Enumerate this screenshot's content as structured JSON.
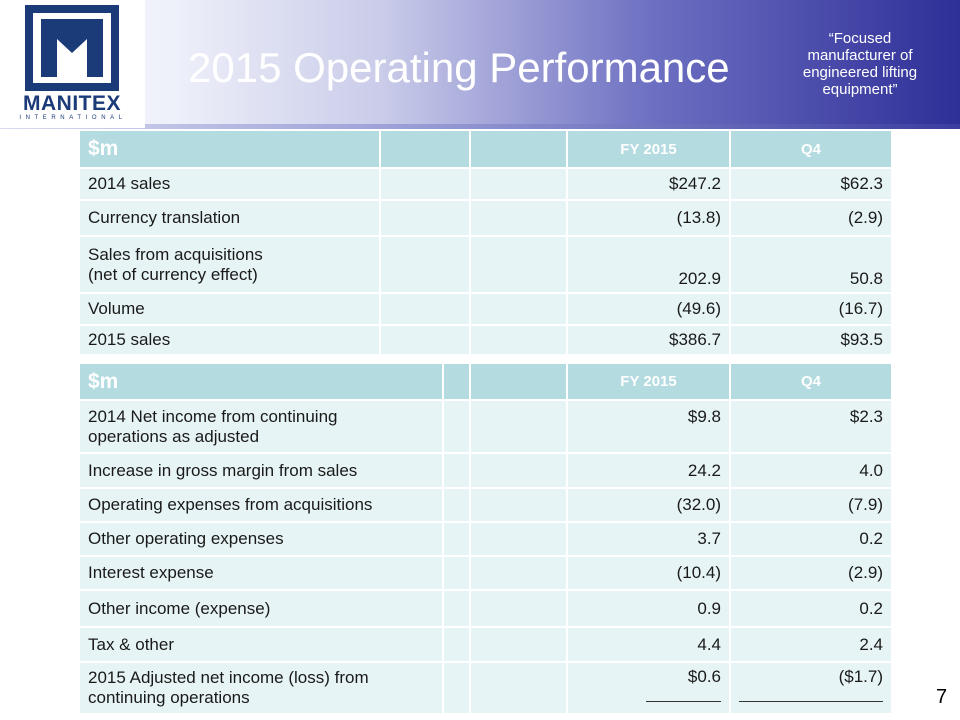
{
  "header": {
    "title": "2015 Operating Performance",
    "tagline": "“Focused manufacturer of engineered lifting equipment”",
    "logo_word": "MANITEX",
    "logo_sub": "INTERNATIONAL"
  },
  "table1": {
    "unit_label": "$m",
    "col_fy": "FY 2015",
    "col_q4": "Q4",
    "rows": [
      {
        "label": "2014 sales",
        "fy": "$247.2",
        "q4": "$62.3"
      },
      {
        "label": "Currency translation",
        "fy": "(13.8)",
        "q4": "(2.9)"
      },
      {
        "label": "Sales from acquisitions",
        "label2": "(net of currency effect)",
        "fy": "202.9",
        "q4": "50.8"
      },
      {
        "label": "Volume",
        "fy": "(49.6)",
        "q4": "(16.7)"
      },
      {
        "label": "2015 sales",
        "fy": "$386.7",
        "q4": "$93.5"
      }
    ]
  },
  "table2": {
    "unit_label": "$m",
    "col_fy": "FY 2015",
    "col_q4": "Q4",
    "rows": [
      {
        "label": "2014 Net income from continuing",
        "label2": "operations as adjusted",
        "fy": "$9.8",
        "q4": "$2.3"
      },
      {
        "label": "Increase in gross margin from sales",
        "fy": "24.2",
        "q4": "4.0"
      },
      {
        "label": "Operating expenses from acquisitions",
        "fy": "(32.0)",
        "q4": "(7.9)"
      },
      {
        "label": "Other operating expenses",
        "fy": "3.7",
        "q4": "0.2"
      },
      {
        "label": "Interest expense",
        "fy": "(10.4)",
        "q4": "(2.9)"
      },
      {
        "label": "Other income (expense)",
        "fy": "0.9",
        "q4": "0.2"
      },
      {
        "label": "Tax & other",
        "fy": "4.4",
        "q4": "2.4"
      },
      {
        "label": "2015 Adjusted net income (loss) from",
        "label2": "continuing operations",
        "fy": "$0.6",
        "q4": "($1.7)"
      }
    ]
  },
  "page_number": "7",
  "colors": {
    "header_cell": "#b3dbe0",
    "row_cell": "#e7f4f5",
    "banner_dark": "#2e2f97",
    "logo_blue": "#1b3a78"
  }
}
